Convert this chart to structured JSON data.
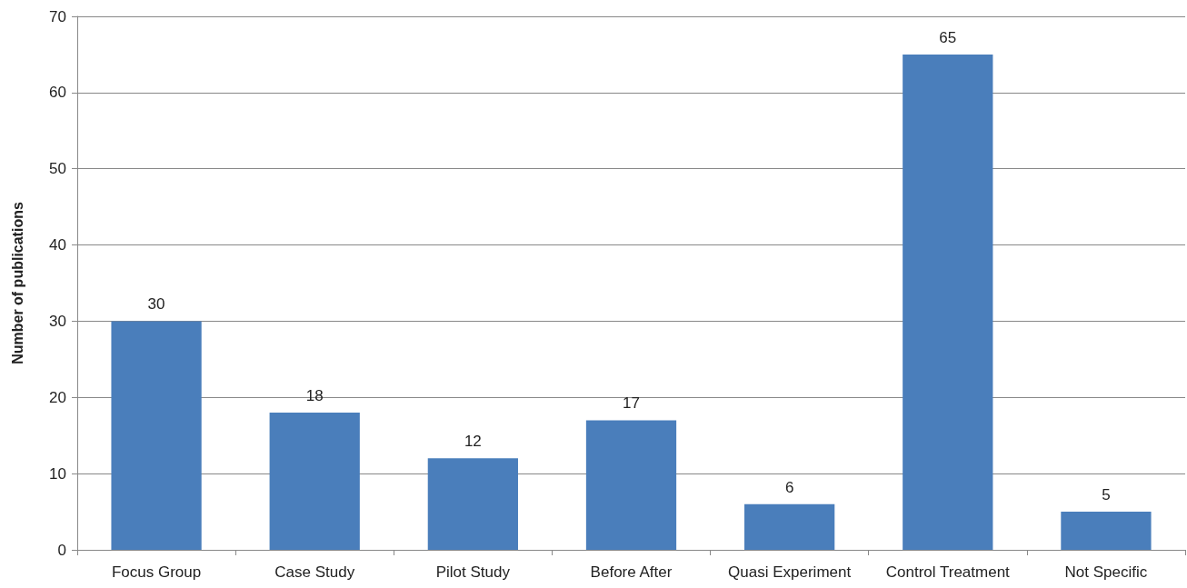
{
  "chart_data": {
    "type": "bar",
    "ylabel": "Number of publications",
    "categories": [
      "Focus Group",
      "Case Study",
      "Pilot Study",
      "Before After",
      "Quasi Experiment",
      "Control Treatment",
      "Not Specific"
    ],
    "values": [
      30,
      18,
      12,
      17,
      6,
      65,
      5
    ],
    "color": "#4a7ebb",
    "ylim": [
      0,
      70
    ],
    "yticks": [
      0,
      10,
      20,
      30,
      40,
      50,
      60,
      70
    ],
    "grid": "y",
    "data_labels": true
  }
}
